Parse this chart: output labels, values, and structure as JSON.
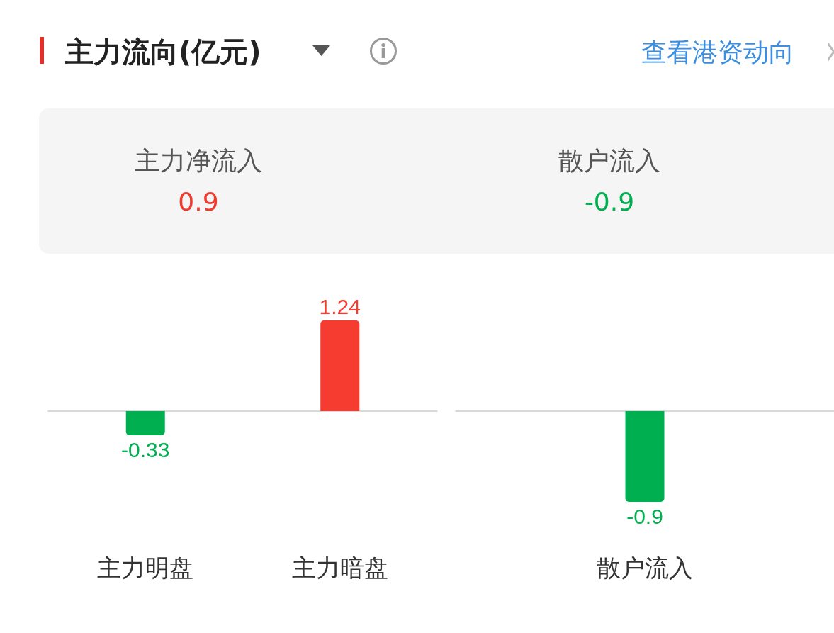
{
  "chart_data": [
    {
      "type": "other",
      "title": "主力流向(亿元)",
      "annotations": [
        "查看港资动向"
      ],
      "categories": [
        "主力净流入",
        "散户流入"
      ],
      "values": [
        0.9,
        -0.9
      ],
      "data_labels": true
    },
    {
      "type": "bar",
      "categories": [
        "主力明盘",
        "主力暗盘"
      ],
      "values": [
        -0.33,
        1.24
      ],
      "colors": [
        "#00b050",
        "#f63b30"
      ],
      "data_labels": true
    },
    {
      "type": "bar",
      "categories": [
        "散户流入"
      ],
      "values": [
        -0.9
      ],
      "colors": [
        "#00b050"
      ],
      "data_labels": true
    }
  ]
}
